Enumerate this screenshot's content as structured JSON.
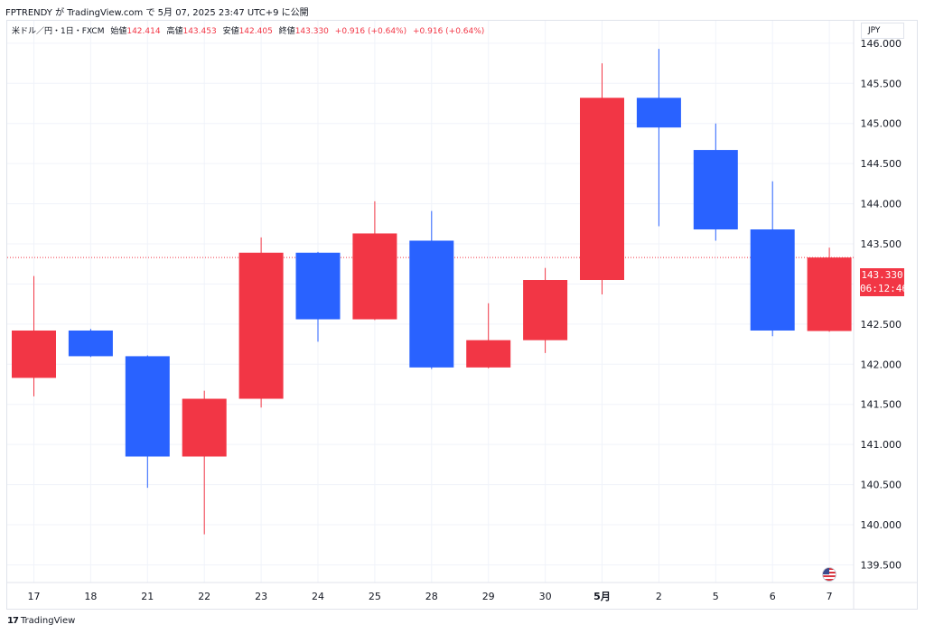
{
  "header": {
    "caption": "FPTRENDY が TradingView.com で 5月 07, 2025 23:47 UTC+9 に公開"
  },
  "legend": {
    "symbol": "米ドル／円・1日・FXCM",
    "open_label": "始値",
    "open": "142.414",
    "high_label": "高値",
    "high": "143.453",
    "low_label": "安値",
    "low": "142.405",
    "close_label": "終値",
    "close": "143.330",
    "change_1": "+0.916 (+0.64%)",
    "change_2": "+0.916 (+0.64%)"
  },
  "currency": "JPY",
  "last_price": {
    "price": "143.330",
    "countdown": "06:12:46"
  },
  "footer": {
    "brand": "TradingView",
    "logo_icon": "tradingview-logo-icon"
  },
  "colors": {
    "up": "#f23645",
    "down": "#2962ff",
    "grid": "#f0f3fa",
    "text": "#131722"
  },
  "chart_data": {
    "type": "candlestick",
    "symbol": "USDJPY",
    "x": [
      "17",
      "18",
      "21",
      "22",
      "23",
      "24",
      "25",
      "28",
      "29",
      "30",
      "5月",
      "2",
      "5",
      "6",
      "7"
    ],
    "open": [
      141.83,
      142.42,
      142.1,
      140.85,
      141.57,
      143.39,
      142.56,
      143.54,
      141.96,
      142.3,
      143.05,
      145.32,
      144.67,
      143.68,
      142.414
    ],
    "high": [
      143.1,
      142.44,
      142.11,
      141.67,
      143.58,
      143.4,
      144.03,
      143.91,
      142.76,
      143.2,
      145.75,
      145.93,
      145.0,
      144.28,
      143.453
    ],
    "low": [
      141.6,
      142.09,
      140.46,
      139.88,
      141.46,
      142.28,
      142.55,
      141.94,
      141.95,
      142.14,
      142.87,
      143.72,
      143.54,
      142.35,
      142.405
    ],
    "close": [
      142.42,
      142.1,
      140.85,
      141.57,
      143.39,
      142.56,
      143.63,
      141.96,
      142.3,
      143.05,
      145.32,
      144.95,
      143.68,
      142.42,
      143.33
    ],
    "y_ticks": [
      "146.000",
      "145.500",
      "145.000",
      "144.500",
      "144.000",
      "143.500",
      "143.000",
      "142.500",
      "142.000",
      "141.500",
      "141.000",
      "140.500",
      "140.000",
      "139.500"
    ],
    "ylim": [
      139.28,
      146.28
    ],
    "last": 143.33,
    "grid": true
  }
}
